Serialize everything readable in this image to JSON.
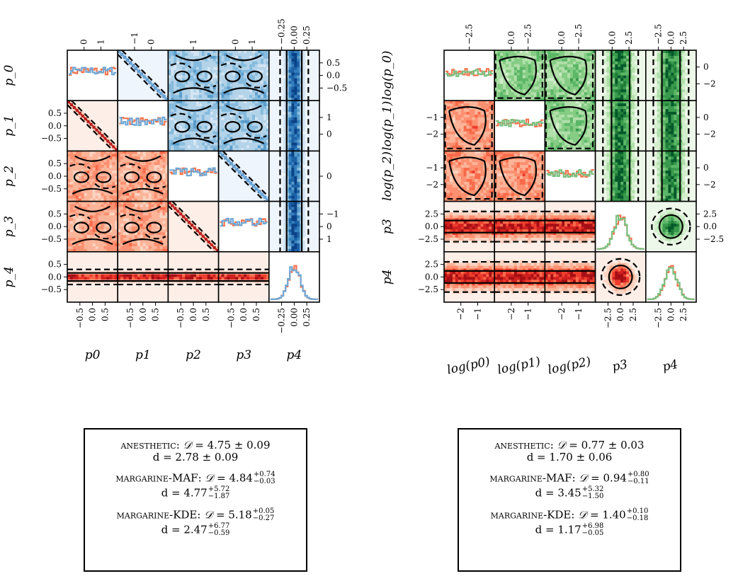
{
  "chart_data": [
    {
      "type": "corner",
      "panel": "left",
      "parameters": [
        "p0",
        "p1",
        "p2",
        "p3",
        "p4"
      ],
      "diagonal_labels": [
        "p_0",
        "p_1",
        "p_2",
        "p_3",
        "p_4"
      ],
      "bottom_labels": [
        "p0",
        "p1",
        "p2",
        "p3",
        "p4"
      ],
      "ranges": [
        [
          -1,
          1
        ],
        [
          -1,
          1
        ],
        [
          -1,
          1
        ],
        [
          -1,
          1
        ],
        [
          -0.4,
          0.4
        ]
      ],
      "bottom_ticks": [
        [
          "−0.5",
          "0.0",
          "0.5"
        ],
        [
          "−0.5",
          "0.0",
          "0.5"
        ],
        [
          "−0.5",
          "0.0",
          "0.5"
        ],
        [
          "−0.5",
          "0.0",
          "0.5"
        ],
        [
          "−0.25",
          "0.00",
          "0.25"
        ]
      ],
      "top_ticks": [
        [
          "0",
          "1"
        ],
        [
          "−1",
          "0"
        ],
        [
          "1"
        ],
        [
          "0",
          "1"
        ],
        [
          "−0.25",
          "0.00",
          "0.25"
        ]
      ],
      "top_tick_positions": [
        [
          0
        ],
        [
          -1,
          0,
          1
        ],
        [
          1
        ],
        [
          0,
          1
        ],
        [
          -0.25,
          0,
          0.25
        ]
      ],
      "left_ticks": [
        "0.5",
        "0.0",
        "−0.5"
      ],
      "right_ticks": [
        [
          "0.5",
          "0.0",
          "−0.5"
        ],
        [
          "1",
          "0"
        ],
        [
          "0"
        ],
        [
          "−1",
          "0",
          "1"
        ]
      ],
      "lower_triangle_colormap": "Reds",
      "upper_triangle_colormap": "Blues",
      "series": [
        {
          "name": "anesthetic",
          "color": "#f4744f"
        },
        {
          "name": "margarine",
          "color": "#6fa8d6"
        }
      ]
    },
    {
      "type": "corner",
      "panel": "right",
      "parameters": [
        "log(p0)",
        "log(p1)",
        "log(p2)",
        "p3",
        "p4"
      ],
      "diagonal_labels": [
        "log(p_0)",
        "log(p_1)",
        "log(p_2)",
        "p3",
        "p4"
      ],
      "bottom_labels": [
        "log(p0)",
        "log(p1)",
        "log(p2)",
        "p3",
        "p4"
      ],
      "ranges": [
        [
          -3,
          0
        ],
        [
          -3,
          0
        ],
        [
          -3,
          0
        ],
        [
          -3,
          3
        ],
        [
          -3,
          3
        ]
      ],
      "bottom_ticks": [
        [
          "−2",
          "−1"
        ],
        [
          "−2",
          "−1"
        ],
        [
          "−2",
          "−1"
        ],
        [
          "−2.5",
          "0.0",
          "2.5"
        ],
        [
          "−2.5",
          "0.0",
          "2.5"
        ]
      ],
      "top_ticks": [
        [
          "−2.5"
        ],
        [
          "0.0",
          "−2.5"
        ],
        [
          "0.0",
          "−2.5"
        ],
        [
          "0.0",
          "2.5"
        ],
        [
          "−2.5",
          "0.0",
          "2.5"
        ]
      ],
      "left_ticks": [
        "−1",
        "−2"
      ],
      "right_ticks": [
        [
          "0",
          "−2"
        ],
        [
          "0",
          "−2"
        ],
        [
          "0",
          "−2"
        ],
        [
          "2.5",
          "0.0",
          "−2.5"
        ]
      ],
      "lower_triangle_colormap": "Reds",
      "upper_triangle_colormap": "Greens",
      "series": [
        {
          "name": "anesthetic",
          "color": "#f4744f"
        },
        {
          "name": "margarine",
          "color": "#79c07f"
        }
      ]
    }
  ],
  "summaries": {
    "left": {
      "anesthetic": {
        "label": "anesthetic",
        "D": "4.75 ± 0.09",
        "d": "2.78 ± 0.09"
      },
      "maf": {
        "label": "margarine-MAF",
        "D_val": "4.84",
        "D_up": "+0.74",
        "D_lo": "−0.03",
        "d_val": "4.77",
        "d_up": "+5.72",
        "d_lo": "−1.87"
      },
      "kde": {
        "label": "margarine-KDE",
        "D_val": "5.18",
        "D_up": "+0.05",
        "D_lo": "−0.27",
        "d_val": "2.47",
        "d_up": "+6.77",
        "d_lo": "−0.59"
      }
    },
    "right": {
      "anesthetic": {
        "label": "anesthetic",
        "D": "0.77 ± 0.03",
        "d": "1.70 ± 0.06"
      },
      "maf": {
        "label": "margarine-MAF",
        "D_val": "0.94",
        "D_up": "+0.80",
        "D_lo": "−0.11",
        "d_val": "3.45",
        "d_up": "+5.32",
        "d_lo": "−1.50"
      },
      "kde": {
        "label": "margarine-KDE",
        "D_val": "1.40",
        "D_up": "+0.10",
        "D_lo": "−0.18",
        "d_val": "1.17",
        "d_up": "+6.98",
        "d_lo": "−0.05"
      }
    },
    "symbols": {
      "D": "𝒟",
      "d": "d",
      "eq": " = "
    }
  }
}
